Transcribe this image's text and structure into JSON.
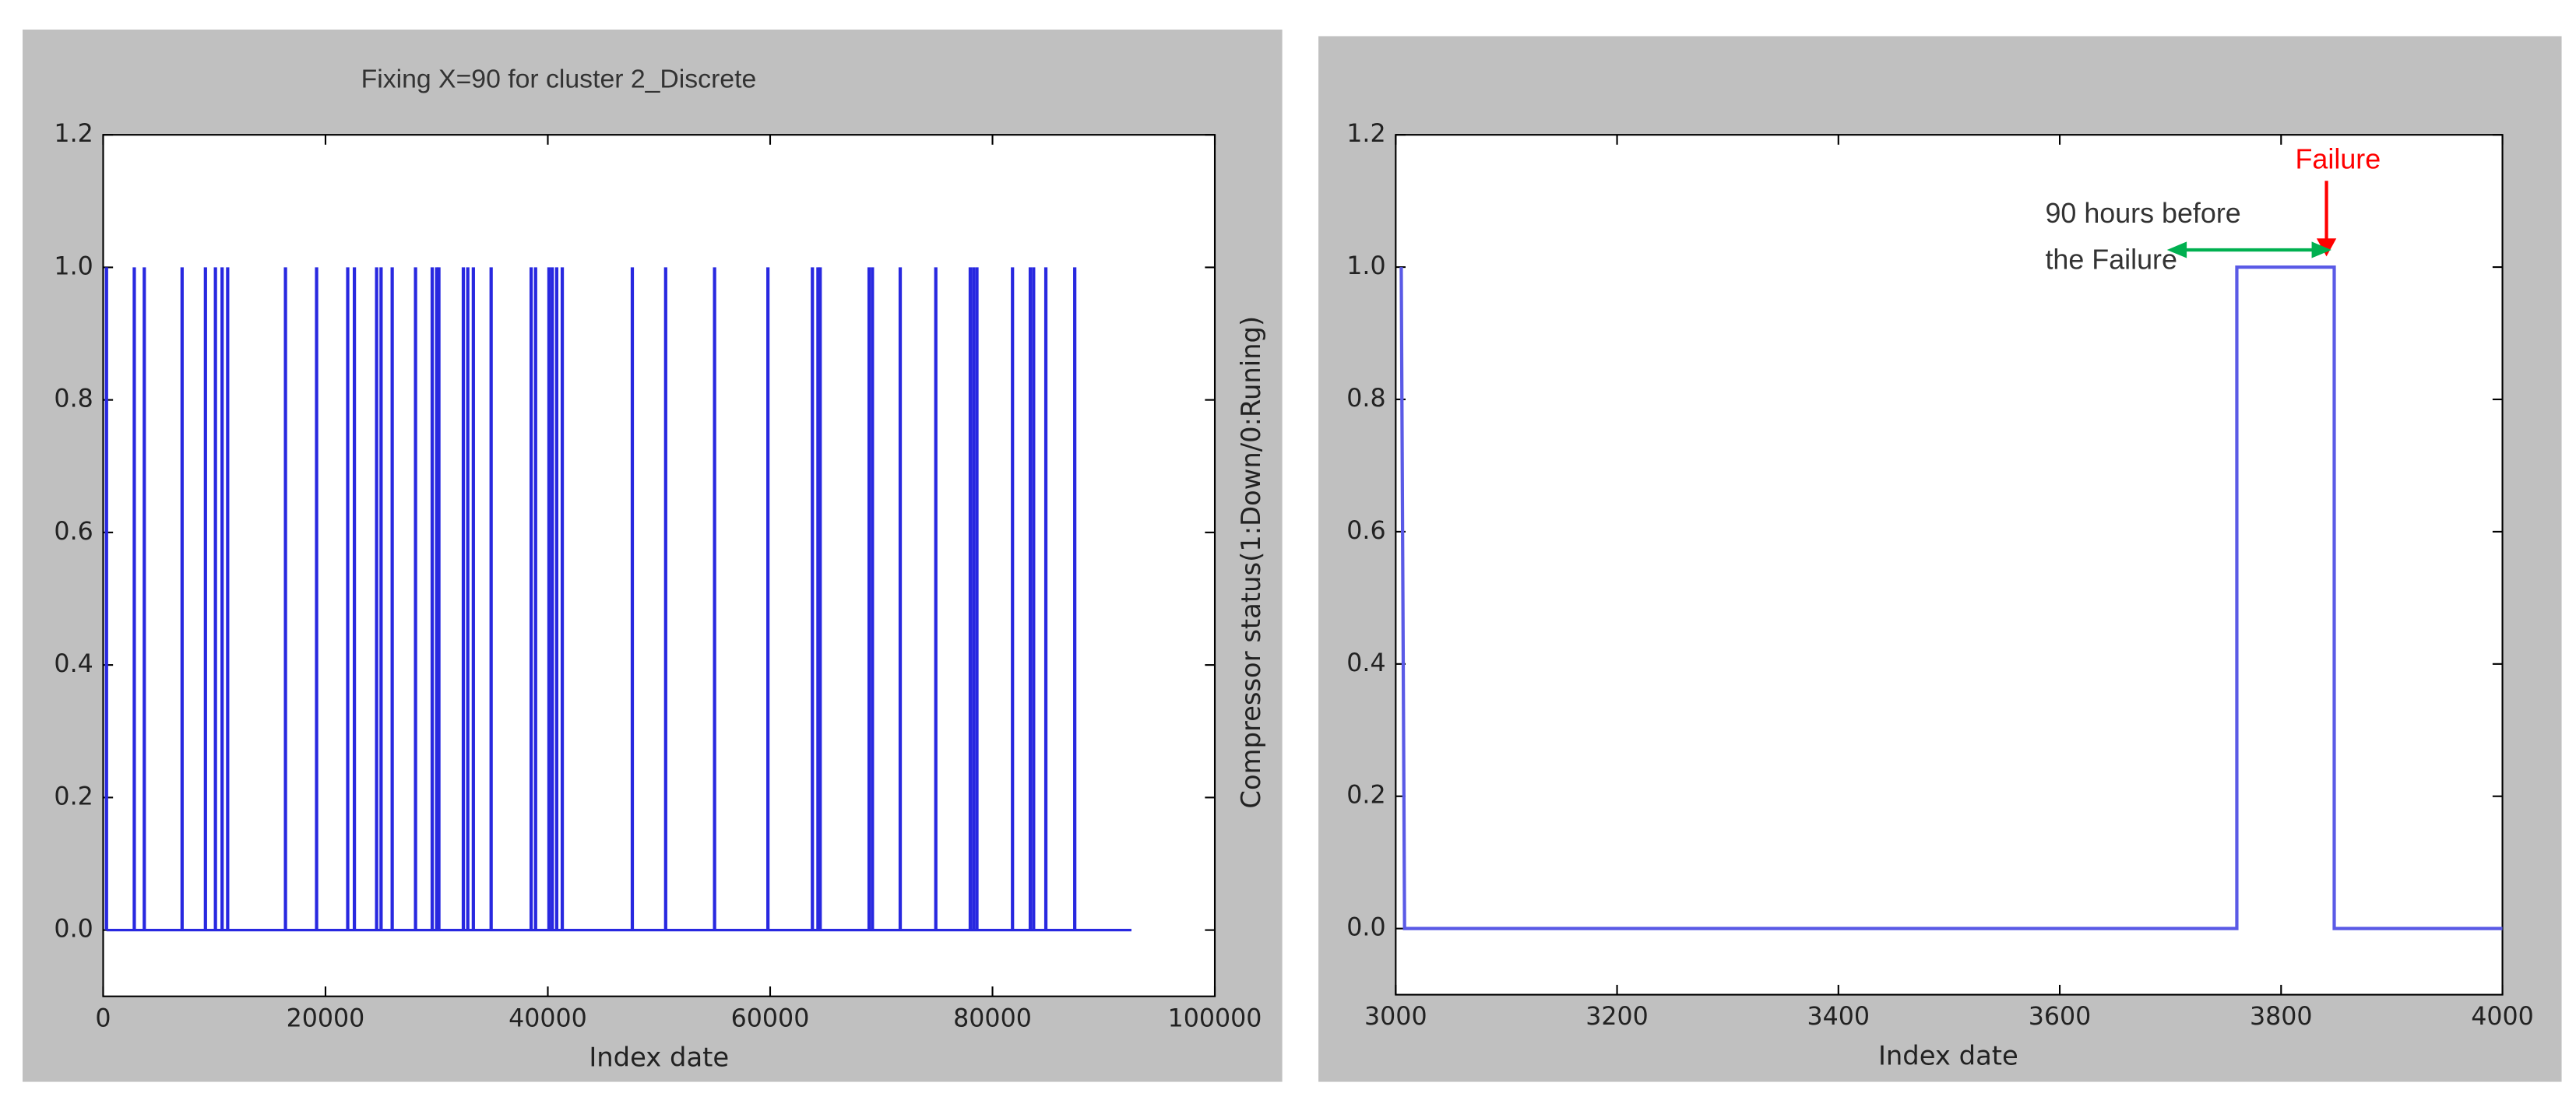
{
  "chart_data": [
    {
      "type": "stem",
      "title": "Fixing X=90 for cluster 2_Discrete",
      "xlabel": "Index date",
      "color": "#2828e0",
      "x": [
        300,
        2800,
        3700,
        7100,
        9200,
        10100,
        10700,
        11200,
        16400,
        19200,
        22000,
        22600,
        24600,
        25000,
        26000,
        28100,
        29600,
        30000,
        30200,
        32400,
        32800,
        33300,
        34900,
        38500,
        38900,
        40100,
        40400,
        40800,
        41300,
        47600,
        50600,
        55000,
        59800,
        63800,
        64300,
        64500,
        68900,
        69200,
        71700,
        74900,
        78000,
        78300,
        78600,
        81800,
        83400,
        83700,
        84800,
        87400,
        92500
      ],
      "values": [
        1,
        1,
        1,
        1,
        1,
        1,
        1,
        1,
        1,
        1,
        1,
        1,
        1,
        1,
        1,
        1,
        1,
        1,
        1,
        1,
        1,
        1,
        1,
        1,
        1,
        1,
        1,
        1,
        1,
        1,
        1,
        1,
        1,
        1,
        1,
        1,
        1,
        1,
        1,
        1,
        1,
        1,
        1,
        1,
        1,
        1,
        1,
        1,
        0
      ],
      "xlim": [
        0,
        100000
      ],
      "xticks": [
        0,
        20000,
        40000,
        60000,
        80000,
        100000
      ],
      "ylim": [
        -0.1,
        1.2
      ],
      "yticks": [
        {
          "value": 0,
          "label": "0.0"
        },
        0.2,
        0.4,
        0.6,
        0.8,
        {
          "value": 1,
          "label": "1.0"
        },
        1.2
      ]
    },
    {
      "type": "line",
      "xlabel": "Index date",
      "ylabel": "Compressor status(1:Down/0:Runing)",
      "color": "#5a5ae6",
      "x": [
        3005,
        3008,
        3760,
        3760,
        3848,
        3848,
        4000
      ],
      "values": [
        1,
        0,
        0,
        1,
        1,
        0,
        0
      ],
      "xlim": [
        3000,
        4000
      ],
      "xticks": [
        3000,
        3200,
        3400,
        3600,
        3800,
        4000
      ],
      "ylim": [
        -0.1,
        1.2
      ],
      "yticks": [
        {
          "value": 0,
          "label": "0.0"
        },
        0.2,
        0.4,
        0.6,
        0.8,
        {
          "value": 1,
          "label": "1.0"
        },
        1.2
      ],
      "annotations": [
        {
          "text": "Failure",
          "color": "#ff0000"
        },
        {
          "text": "90 hours before",
          "color": "#333333"
        },
        {
          "text": "the Failure",
          "color": "#333333"
        }
      ]
    }
  ]
}
